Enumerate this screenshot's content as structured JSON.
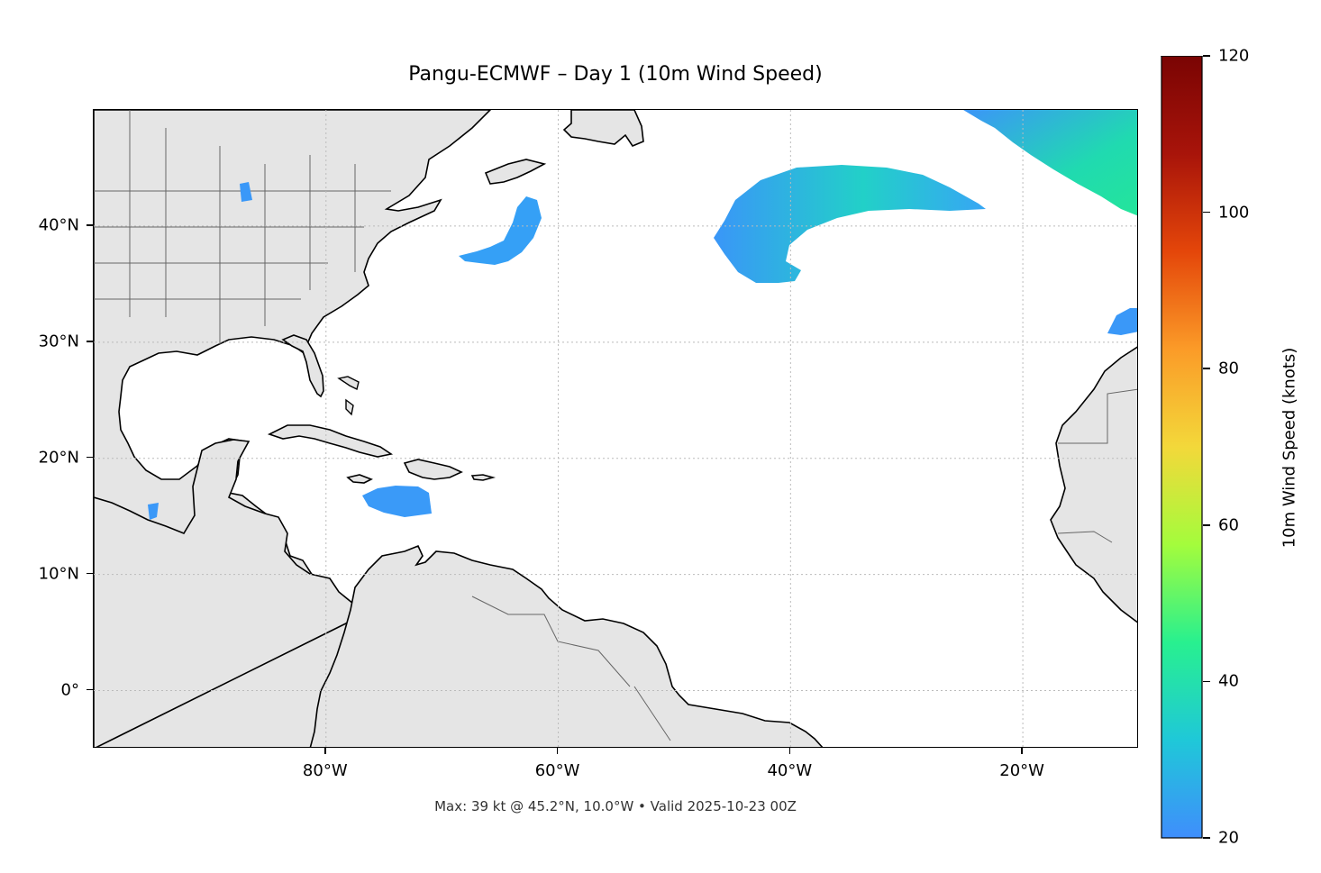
{
  "title": "Pangu-ECMWF – Day 1 (10m Wind Speed)",
  "footer": "Max: 39 kt @ 45.2°N, 10.0°W • Valid 2025-10-23 00Z",
  "map": {
    "lon_range": [
      -100,
      -10
    ],
    "lat_range": [
      -5,
      50
    ],
    "land_color": "#e5e5e5",
    "gridlines": true,
    "lat_ticks": [
      {
        "value": 40,
        "label": "40°N"
      },
      {
        "value": 30,
        "label": "30°N"
      },
      {
        "value": 20,
        "label": "20°N"
      },
      {
        "value": 10,
        "label": "10°N"
      },
      {
        "value": 0,
        "label": "0°"
      }
    ],
    "lon_ticks": [
      {
        "value": -80,
        "label": "80°W"
      },
      {
        "value": -60,
        "label": "60°W"
      },
      {
        "value": -40,
        "label": "40°W"
      },
      {
        "value": -20,
        "label": "20°W"
      }
    ]
  },
  "colorbar": {
    "label": "10m Wind Speed (knots)",
    "min": 20,
    "max": 120,
    "extend": "max",
    "ticks": [
      {
        "value": 20,
        "label": "20"
      },
      {
        "value": 40,
        "label": "40"
      },
      {
        "value": 60,
        "label": "60"
      },
      {
        "value": 80,
        "label": "80"
      },
      {
        "value": 100,
        "label": "100"
      },
      {
        "value": 120,
        "label": "120"
      }
    ],
    "colors": [
      "#3f8efc",
      "#1fc8d8",
      "#28f08f",
      "#a4fc3c",
      "#f3d83a",
      "#fb9b28",
      "#e4460a",
      "#a8140a",
      "#7a0403"
    ]
  },
  "wind_features": [
    {
      "name": "north-atlantic-low",
      "lat_center": 41.5,
      "lon_center": -38,
      "max_kt": 35
    },
    {
      "name": "northeast-corner-jet",
      "lat_center": 45.2,
      "lon_center": -10,
      "max_kt": 39
    },
    {
      "name": "nova-scotia-south",
      "lat_center": 39,
      "lon_center": -63,
      "max_kt": 24
    },
    {
      "name": "hispaniola-south",
      "lat_center": 16.5,
      "lon_center": -72,
      "max_kt": 25
    },
    {
      "name": "azores-east",
      "lat_center": 32,
      "lon_center": -11,
      "max_kt": 23
    }
  ]
}
